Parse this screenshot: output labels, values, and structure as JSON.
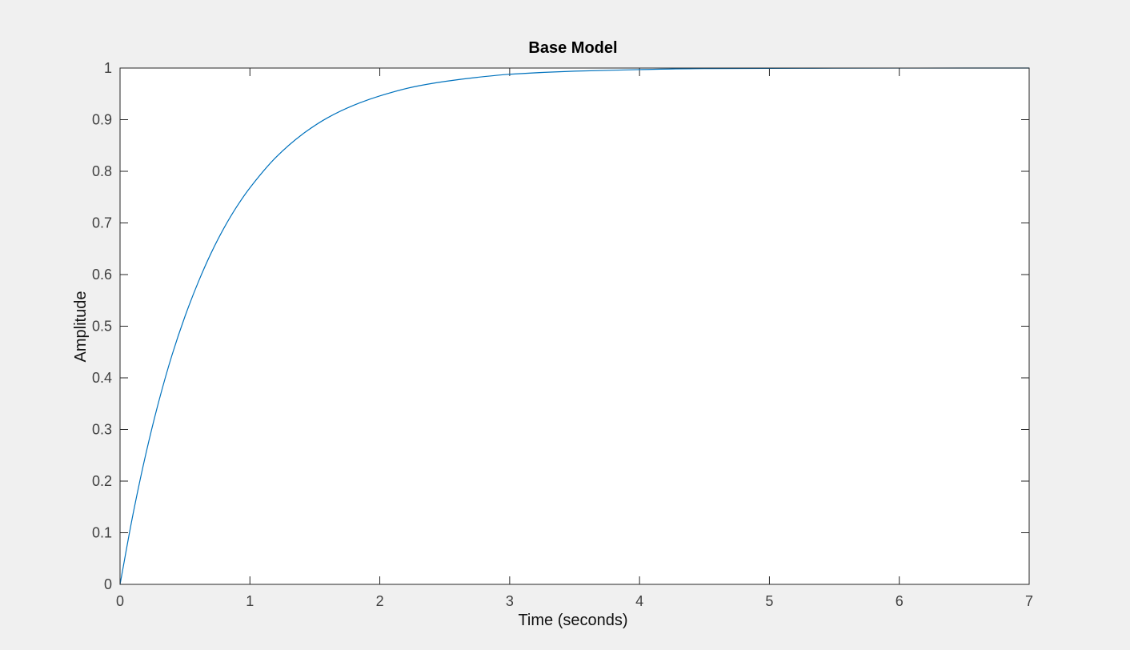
{
  "chart_data": {
    "type": "line",
    "title": "Base Model",
    "xlabel": "Time (seconds)",
    "ylabel": "Amplitude",
    "xlim": [
      0,
      7
    ],
    "ylim": [
      0,
      1
    ],
    "xticks": [
      0,
      1,
      2,
      3,
      4,
      5,
      6,
      7
    ],
    "yticks": [
      0,
      0.1,
      0.2,
      0.3,
      0.4,
      0.5,
      0.6,
      0.7,
      0.8,
      0.9,
      1
    ],
    "xtick_labels": [
      "0",
      "1",
      "2",
      "3",
      "4",
      "5",
      "6",
      "7"
    ],
    "ytick_labels": [
      "0",
      "0.1",
      "0.2",
      "0.3",
      "0.4",
      "0.5",
      "0.6",
      "0.7",
      "0.8",
      "0.9",
      "1"
    ],
    "grid": false,
    "steady_state_line": 1,
    "series": [
      {
        "color": "#0072bd",
        "x": [
          0,
          0.1,
          0.2,
          0.3,
          0.4,
          0.5,
          0.6,
          0.7,
          0.8,
          0.9,
          1.0,
          1.2,
          1.4,
          1.6,
          1.8,
          2.0,
          2.25,
          2.5,
          2.75,
          3.0,
          3.5,
          4.0,
          4.5,
          5.0,
          5.5,
          6.0,
          6.5,
          7.0
        ],
        "y": [
          0,
          0.136,
          0.254,
          0.356,
          0.444,
          0.519,
          0.584,
          0.641,
          0.69,
          0.732,
          0.768,
          0.827,
          0.871,
          0.904,
          0.928,
          0.946,
          0.963,
          0.974,
          0.982,
          0.988,
          0.994,
          0.997,
          0.999,
          0.9994,
          0.9997,
          0.9999,
          1.0,
          1.0
        ]
      }
    ]
  }
}
